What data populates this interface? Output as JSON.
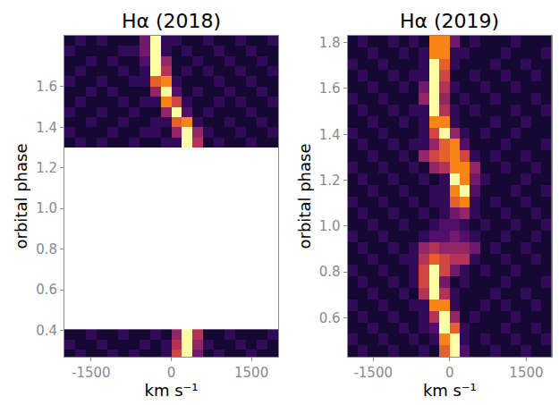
{
  "chart_data": [
    {
      "type": "heatmap",
      "title": "Hα (2018)",
      "xlabel": "km s⁻¹",
      "ylabel": "orbital phase",
      "xlim": [
        -2000,
        2000
      ],
      "ylim": [
        0.27,
        1.85
      ],
      "xticks": [
        -1500,
        0,
        1500
      ],
      "yticks": [
        0.4,
        0.6,
        0.8,
        {
          "value": 1,
          "label": "1.0"
        },
        1.2,
        1.4,
        1.6
      ],
      "zlim": [
        0,
        10
      ],
      "grid": false,
      "x": [
        -1900,
        -1700,
        -1500,
        -1300,
        -1100,
        -900,
        -700,
        -500,
        -300,
        -100,
        100,
        300,
        500,
        700,
        900,
        1100,
        1300,
        1500,
        1700,
        1900
      ],
      "segments": [
        {
          "y": [
            0.28,
            0.33,
            0.38
          ],
          "z": [
            [
              1,
              2,
              1,
              1,
              2,
              1,
              2,
              1,
              1,
              2,
              7,
              10,
              4,
              1,
              2,
              1,
              1,
              2,
              1,
              1
            ],
            [
              2,
              1,
              1,
              2,
              1,
              1,
              1,
              2,
              1,
              2,
              6,
              10,
              5,
              2,
              1,
              1,
              2,
              1,
              2,
              1
            ],
            [
              1,
              1,
              2,
              1,
              1,
              2,
              1,
              1,
              2,
              1,
              5,
              10,
              6,
              1,
              1,
              2,
              1,
              1,
              1,
              2
            ]
          ]
        },
        {
          "y": [
            1.325,
            1.375,
            1.425,
            1.475,
            1.525,
            1.575,
            1.625,
            1.675,
            1.725,
            1.775,
            1.825
          ],
          "z": [
            [
              1,
              2,
              1,
              2,
              1,
              1,
              2,
              1,
              1,
              2,
              2,
              10,
              6,
              1,
              2,
              1,
              1,
              2,
              1,
              1
            ],
            [
              2,
              1,
              1,
              1,
              2,
              1,
              1,
              2,
              2,
              1,
              5,
              10,
              5,
              2,
              1,
              1,
              2,
              1,
              1,
              2
            ],
            [
              1,
              1,
              2,
              1,
              1,
              2,
              1,
              1,
              2,
              2,
              8,
              9,
              2,
              1,
              1,
              2,
              1,
              1,
              2,
              1
            ],
            [
              2,
              1,
              1,
              2,
              1,
              1,
              2,
              1,
              1,
              5,
              10,
              3,
              1,
              2,
              1,
              1,
              1,
              2,
              1,
              1
            ],
            [
              1,
              2,
              1,
              1,
              1,
              2,
              1,
              2,
              2,
              9,
              7,
              2,
              1,
              1,
              2,
              1,
              2,
              1,
              1,
              2
            ],
            [
              1,
              1,
              2,
              1,
              2,
              1,
              1,
              1,
              5,
              10,
              3,
              1,
              2,
              1,
              1,
              2,
              1,
              1,
              2,
              1
            ],
            [
              2,
              1,
              1,
              2,
              1,
              1,
              2,
              2,
              8,
              9,
              2,
              1,
              1,
              1,
              2,
              1,
              1,
              2,
              1,
              1
            ],
            [
              1,
              2,
              1,
              1,
              1,
              2,
              1,
              2,
              10,
              6,
              1,
              2,
              1,
              2,
              1,
              1,
              2,
              1,
              1,
              2
            ],
            [
              1,
              1,
              2,
              1,
              2,
              1,
              1,
              3,
              10,
              5,
              1,
              1,
              2,
              1,
              1,
              2,
              1,
              1,
              2,
              1
            ],
            [
              2,
              1,
              1,
              1,
              1,
              2,
              2,
              4,
              10,
              2,
              1,
              2,
              1,
              1,
              2,
              1,
              1,
              2,
              1,
              1
            ],
            [
              1,
              2,
              1,
              2,
              1,
              1,
              1,
              4,
              10,
              2,
              2,
              1,
              1,
              2,
              1,
              1,
              2,
              1,
              1,
              2
            ]
          ]
        }
      ]
    },
    {
      "type": "heatmap",
      "title": "Hα (2019)",
      "xlabel": "km s⁻¹",
      "ylabel": "orbital phase",
      "xlim": [
        -2000,
        2000
      ],
      "ylim": [
        0.43,
        1.83
      ],
      "xticks": [
        -1500,
        0,
        1500
      ],
      "yticks": [
        0.6,
        0.8,
        {
          "value": 1,
          "label": "1.0"
        },
        1.2,
        1.4,
        1.6,
        1.8
      ],
      "zlim": [
        0,
        10
      ],
      "grid": false,
      "x": [
        -1900,
        -1700,
        -1500,
        -1300,
        -1100,
        -900,
        -700,
        -500,
        -300,
        -100,
        100,
        300,
        500,
        700,
        900,
        1100,
        1300,
        1500,
        1700,
        1900
      ],
      "segments": [
        {
          "y": [
            0.455,
            0.505,
            0.555,
            0.605,
            0.655,
            0.705,
            0.755,
            0.805,
            0.855,
            0.905,
            0.955,
            1.005,
            1.055,
            1.105,
            1.155,
            1.205,
            1.255,
            1.305,
            1.355,
            1.405,
            1.455,
            1.505,
            1.555,
            1.605,
            1.655,
            1.705,
            1.755,
            1.805
          ],
          "z": [
            [
              1,
              2,
              1,
              1,
              2,
              1,
              1,
              2,
              1,
              8,
              10,
              3,
              1,
              1,
              2,
              1,
              1,
              2,
              1,
              1
            ],
            [
              2,
              1,
              1,
              2,
              1,
              1,
              2,
              1,
              2,
              9,
              10,
              2,
              1,
              2,
              1,
              1,
              2,
              1,
              1,
              2
            ],
            [
              1,
              1,
              2,
              1,
              1,
              2,
              1,
              2,
              3,
              10,
              8,
              2,
              1,
              1,
              1,
              2,
              1,
              1,
              2,
              1
            ],
            [
              1,
              2,
              1,
              1,
              2,
              1,
              1,
              2,
              6,
              10,
              5,
              1,
              2,
              1,
              1,
              1,
              2,
              1,
              1,
              1
            ],
            [
              2,
              1,
              1,
              2,
              1,
              1,
              2,
              2,
              9,
              9,
              2,
              1,
              1,
              2,
              1,
              2,
              1,
              1,
              2,
              1
            ],
            [
              1,
              1,
              2,
              1,
              1,
              2,
              1,
              6,
              10,
              6,
              2,
              1,
              1,
              1,
              2,
              1,
              1,
              2,
              1,
              1
            ],
            [
              1,
              2,
              1,
              1,
              2,
              1,
              2,
              7,
              10,
              4,
              1,
              2,
              1,
              1,
              1,
              2,
              1,
              1,
              1,
              2
            ],
            [
              2,
              1,
              1,
              2,
              1,
              1,
              2,
              7,
              10,
              7,
              4,
              2,
              1,
              2,
              1,
              1,
              2,
              1,
              1,
              1
            ],
            [
              1,
              1,
              2,
              1,
              1,
              2,
              2,
              6,
              8,
              7,
              6,
              6,
              2,
              1,
              1,
              2,
              1,
              1,
              2,
              1
            ],
            [
              1,
              2,
              1,
              1,
              2,
              1,
              2,
              5,
              6,
              5,
              5,
              5,
              4,
              1,
              2,
              1,
              1,
              2,
              1,
              1
            ],
            [
              2,
              1,
              1,
              2,
              1,
              1,
              1,
              2,
              3,
              3,
              4,
              3,
              2,
              1,
              1,
              2,
              1,
              1,
              2,
              1
            ],
            [
              1,
              1,
              2,
              1,
              1,
              2,
              1,
              1,
              2,
              3,
              3,
              2,
              1,
              2,
              1,
              1,
              2,
              1,
              1,
              2
            ],
            [
              1,
              2,
              1,
              1,
              2,
              1,
              1,
              2,
              1,
              2,
              4,
              5,
              2,
              1,
              1,
              2,
              1,
              1,
              2,
              1
            ],
            [
              2,
              1,
              1,
              2,
              1,
              1,
              2,
              1,
              2,
              2,
              8,
              9,
              2,
              1,
              2,
              1,
              1,
              2,
              1,
              1
            ],
            [
              1,
              1,
              2,
              1,
              1,
              2,
              1,
              1,
              2,
              2,
              9,
              10,
              3,
              1,
              1,
              1,
              2,
              1,
              1,
              2
            ],
            [
              1,
              2,
              1,
              1,
              2,
              1,
              1,
              2,
              1,
              2,
              10,
              9,
              4,
              2,
              1,
              1,
              1,
              2,
              1,
              1
            ],
            [
              2,
              1,
              1,
              2,
              1,
              1,
              2,
              1,
              5,
              6,
              9,
              9,
              5,
              1,
              1,
              2,
              1,
              1,
              2,
              1
            ],
            [
              1,
              1,
              2,
              1,
              1,
              2,
              1,
              5,
              7,
              8,
              9,
              7,
              2,
              1,
              2,
              1,
              1,
              2,
              1,
              1
            ],
            [
              1,
              2,
              1,
              1,
              2,
              1,
              2,
              2,
              5,
              8,
              9,
              3,
              1,
              1,
              1,
              2,
              1,
              1,
              1,
              2
            ],
            [
              2,
              1,
              1,
              2,
              1,
              1,
              1,
              2,
              7,
              10,
              5,
              2,
              1,
              2,
              1,
              1,
              2,
              1,
              1,
              1
            ],
            [
              1,
              1,
              2,
              1,
              1,
              2,
              1,
              2,
              9,
              9,
              2,
              1,
              1,
              1,
              2,
              1,
              1,
              2,
              1,
              1
            ],
            [
              1,
              2,
              1,
              1,
              2,
              1,
              2,
              2,
              10,
              6,
              2,
              1,
              2,
              1,
              1,
              1,
              2,
              1,
              1,
              2
            ],
            [
              2,
              1,
              1,
              2,
              1,
              1,
              1,
              5,
              10,
              5,
              1,
              2,
              1,
              1,
              2,
              1,
              1,
              1,
              2,
              1
            ],
            [
              1,
              1,
              2,
              1,
              1,
              2,
              1,
              4,
              10,
              6,
              2,
              1,
              1,
              2,
              1,
              1,
              2,
              1,
              1,
              1
            ],
            [
              1,
              2,
              1,
              1,
              2,
              1,
              2,
              2,
              10,
              7,
              1,
              1,
              2,
              1,
              1,
              2,
              1,
              1,
              2,
              1
            ],
            [
              2,
              1,
              1,
              2,
              1,
              1,
              1,
              2,
              10,
              8,
              2,
              1,
              1,
              1,
              2,
              1,
              1,
              2,
              1,
              1
            ],
            [
              1,
              1,
              2,
              1,
              1,
              2,
              1,
              2,
              9,
              9,
              2,
              2,
              1,
              1,
              1,
              2,
              1,
              1,
              1,
              2
            ],
            [
              1,
              2,
              1,
              1,
              2,
              1,
              2,
              1,
              9,
              9,
              4,
              1,
              2,
              1,
              1,
              1,
              2,
              1,
              1,
              1
            ]
          ]
        }
      ]
    }
  ]
}
